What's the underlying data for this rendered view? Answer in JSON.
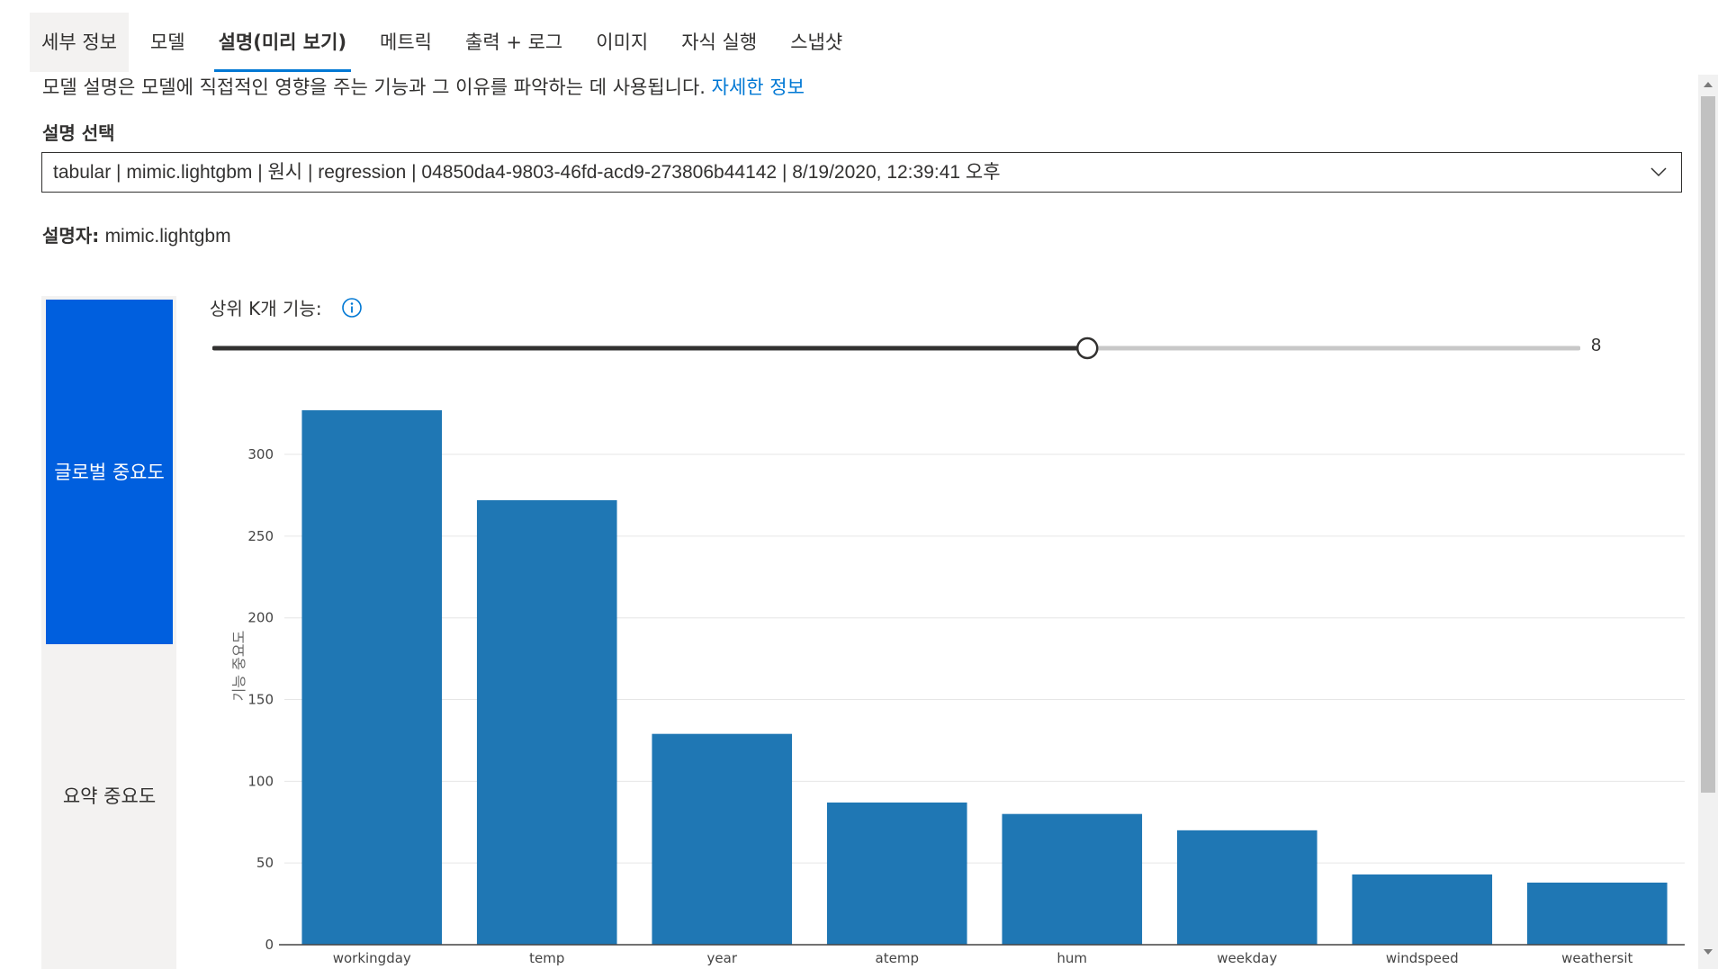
{
  "tabs": [
    {
      "label": "세부 정보"
    },
    {
      "label": "모델"
    },
    {
      "label": "설명(미리 보기)"
    },
    {
      "label": "메트릭"
    },
    {
      "label": "출력 + 로그"
    },
    {
      "label": "이미지"
    },
    {
      "label": "자식 실행"
    },
    {
      "label": "스냅샷"
    }
  ],
  "description": {
    "text": "모델 설명은 모델에 직접적인 영향을 주는 기능과 그 이유를 파악하는 데 사용됩니다.",
    "link": "자세한 정보"
  },
  "explanation_select": {
    "label": "설명 선택",
    "value": "tabular | mimic.lightgbm | 원시 | regression | 04850da4-9803-46fd-acd9-273806b44142 | 8/19/2020, 12:39:41 오후"
  },
  "explainer": {
    "label": "설명자:",
    "value": "mimic.lightgbm"
  },
  "left_nav": {
    "global": "글로벌 중요도",
    "summary": "요약 중요도"
  },
  "top_k": {
    "label": "상위 K개 기능:",
    "value": "8",
    "fraction": 0.64
  },
  "colors": {
    "accent": "#0078d4",
    "nav_active": "#005fde",
    "bar": "#1f77b4"
  },
  "chart_data": {
    "type": "bar",
    "categories": [
      "workingday",
      "temp",
      "year",
      "atemp",
      "hum",
      "weekday",
      "windspeed",
      "weathersit"
    ],
    "values": [
      327,
      272,
      129,
      87,
      80,
      70,
      43,
      38
    ],
    "ylabel": "기능 중요도",
    "yticks": [
      0,
      50,
      100,
      150,
      200,
      250,
      300
    ],
    "ylim": [
      0,
      327
    ]
  }
}
